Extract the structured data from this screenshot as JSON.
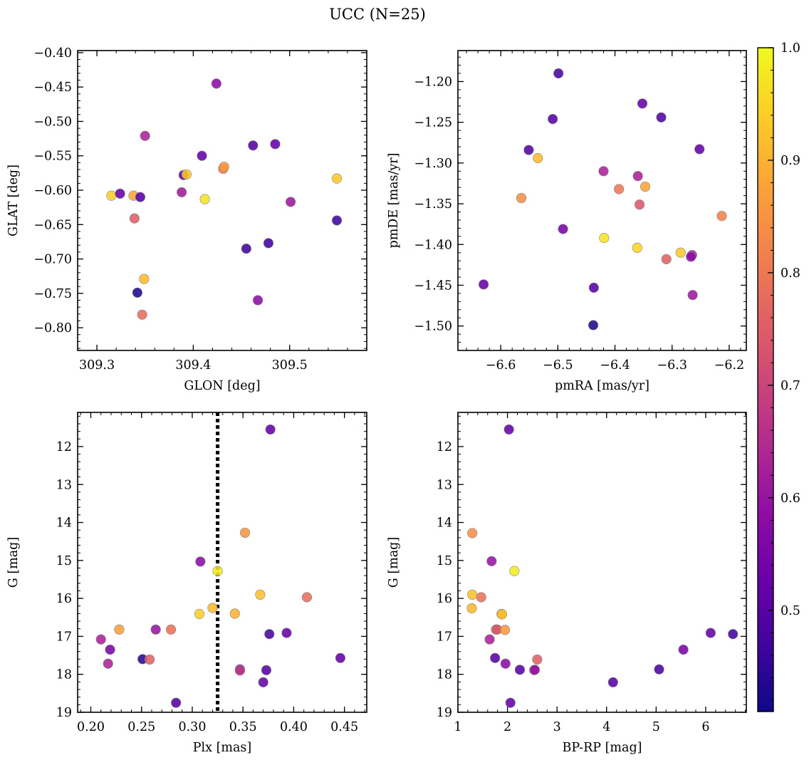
{
  "title": "UCC (N=25)",
  "colorbar": {
    "cmap": "plasma",
    "vmin": 0.41,
    "vmax": 1.0,
    "ticks": [
      0.5,
      0.6,
      0.7,
      0.8,
      0.9,
      1.0
    ],
    "tick_labels": [
      "0.5",
      "0.6",
      "0.7",
      "0.8",
      "0.9",
      "1.0"
    ]
  },
  "chart_data": [
    {
      "type": "scatter",
      "id": "glon-glat",
      "xlabel": "GLON [deg]",
      "ylabel": "GLAT [deg]",
      "xlim": [
        309.28,
        309.58
      ],
      "ylim": [
        -0.833,
        -0.397
      ],
      "y_inverted": false,
      "xticks": [
        309.3,
        309.4,
        309.5
      ],
      "xtick_labels": [
        "309.3",
        "309.4",
        "309.5"
      ],
      "yticks": [
        -0.8,
        -0.75,
        -0.7,
        -0.65,
        -0.6,
        -0.55,
        -0.5,
        -0.45,
        -0.4
      ],
      "ytick_labels": [
        "−0.80",
        "−0.75",
        "−0.70",
        "−0.65",
        "−0.60",
        "−0.55",
        "−0.50",
        "−0.45",
        "−0.40"
      ],
      "x": [
        309.315,
        309.324,
        309.338,
        309.339,
        309.345,
        309.342,
        309.349,
        309.347,
        309.35,
        309.388,
        309.39,
        309.393,
        309.409,
        309.412,
        309.424,
        309.431,
        309.432,
        309.455,
        309.462,
        309.467,
        309.478,
        309.485,
        309.501,
        309.549,
        309.549
      ],
      "y": [
        -0.608,
        -0.605,
        -0.608,
        -0.641,
        -0.61,
        -0.749,
        -0.729,
        -0.781,
        -0.521,
        -0.603,
        -0.578,
        -0.577,
        -0.55,
        -0.613,
        -0.445,
        -0.569,
        -0.566,
        -0.685,
        -0.535,
        -0.76,
        -0.677,
        -0.533,
        -0.617,
        -0.583,
        -0.644
      ],
      "c": [
        0.94,
        0.52,
        0.88,
        0.75,
        0.5,
        0.43,
        0.91,
        0.78,
        0.63,
        0.62,
        0.5,
        0.93,
        0.52,
        0.97,
        0.58,
        0.82,
        0.86,
        0.47,
        0.5,
        0.58,
        0.47,
        0.52,
        0.61,
        0.93,
        0.47
      ]
    },
    {
      "type": "scatter",
      "id": "pm",
      "xlabel": "pmRA [mas/yr]",
      "ylabel": "pmDE [mas/yr]",
      "xlim": [
        -6.675,
        -6.17
      ],
      "ylim": [
        -1.53,
        -1.162
      ],
      "y_inverted": false,
      "xticks": [
        -6.6,
        -6.5,
        -6.4,
        -6.3,
        -6.2
      ],
      "xtick_labels": [
        "−6.6",
        "−6.5",
        "−6.4",
        "−6.3",
        "−6.2"
      ],
      "yticks": [
        -1.5,
        -1.45,
        -1.4,
        -1.35,
        -1.3,
        -1.25,
        -1.2
      ],
      "ytick_labels": [
        "−1.50",
        "−1.45",
        "−1.40",
        "−1.35",
        "−1.30",
        "−1.25",
        "−1.20"
      ],
      "x": [
        -6.499,
        -6.352,
        -6.319,
        -6.509,
        -6.551,
        -6.252,
        -6.535,
        -6.42,
        -6.564,
        -6.36,
        -6.393,
        -6.347,
        -6.357,
        -6.491,
        -6.213,
        -6.419,
        -6.361,
        -6.285,
        -6.31,
        -6.265,
        -6.267,
        -6.63,
        -6.437,
        -6.264,
        -6.438
      ],
      "y": [
        -1.19,
        -1.227,
        -1.244,
        -1.246,
        -1.284,
        -1.283,
        -1.294,
        -1.31,
        -1.343,
        -1.316,
        -1.332,
        -1.329,
        -1.351,
        -1.381,
        -1.365,
        -1.392,
        -1.404,
        -1.41,
        -1.418,
        -1.413,
        -1.415,
        -1.449,
        -1.453,
        -1.462,
        -1.499
      ],
      "c": [
        0.48,
        0.52,
        0.49,
        0.5,
        0.49,
        0.52,
        0.91,
        0.63,
        0.84,
        0.63,
        0.8,
        0.88,
        0.74,
        0.55,
        0.82,
        0.97,
        0.95,
        0.93,
        0.76,
        0.63,
        0.58,
        0.52,
        0.5,
        0.61,
        0.43
      ]
    },
    {
      "type": "scatter",
      "id": "plx-g",
      "xlabel": "Plx [mas]",
      "ylabel": "G [mag]",
      "xlim": [
        0.187,
        0.472
      ],
      "ylim": [
        19.0,
        11.1
      ],
      "y_inverted": true,
      "xticks": [
        0.2,
        0.25,
        0.3,
        0.35,
        0.4,
        0.45
      ],
      "xtick_labels": [
        "0.20",
        "0.25",
        "0.30",
        "0.35",
        "0.40",
        "0.45"
      ],
      "yticks": [
        12,
        13,
        14,
        15,
        16,
        17,
        18,
        19
      ],
      "ytick_labels": [
        "12",
        "13",
        "14",
        "15",
        "16",
        "17",
        "18",
        "19"
      ],
      "vline": 0.325,
      "x": [
        0.377,
        0.352,
        0.308,
        0.325,
        0.367,
        0.413,
        0.32,
        0.307,
        0.342,
        0.376,
        0.393,
        0.228,
        0.264,
        0.279,
        0.21,
        0.219,
        0.217,
        0.251,
        0.258,
        0.446,
        0.347,
        0.373,
        0.347,
        0.37,
        0.284
      ],
      "y": [
        11.55,
        14.27,
        15.03,
        15.28,
        15.9,
        15.97,
        16.25,
        16.41,
        16.4,
        16.94,
        16.91,
        16.82,
        16.82,
        16.82,
        17.08,
        17.35,
        17.72,
        17.6,
        17.61,
        17.57,
        17.87,
        17.89,
        17.9,
        18.21,
        18.75
      ],
      "c": [
        0.52,
        0.85,
        0.58,
        0.98,
        0.92,
        0.78,
        0.91,
        0.94,
        0.9,
        0.48,
        0.52,
        0.87,
        0.6,
        0.79,
        0.63,
        0.55,
        0.63,
        0.44,
        0.76,
        0.52,
        0.52,
        0.5,
        0.68,
        0.52,
        0.5
      ]
    },
    {
      "type": "scatter",
      "id": "bprp-g",
      "xlabel": "BP-RP [mag]",
      "ylabel": "G [mag]",
      "xlim": [
        1.0,
        6.82
      ],
      "ylim": [
        19.0,
        11.1
      ],
      "y_inverted": true,
      "xticks": [
        1,
        2,
        3,
        4,
        5,
        6
      ],
      "xtick_labels": [
        "1",
        "2",
        "3",
        "4",
        "5",
        "6"
      ],
      "yticks": [
        12,
        13,
        14,
        15,
        16,
        17,
        18,
        19
      ],
      "ytick_labels": [
        "12",
        "13",
        "14",
        "15",
        "16",
        "17",
        "18",
        "19"
      ],
      "x": [
        2.03,
        1.29,
        1.68,
        2.14,
        1.29,
        1.47,
        1.28,
        1.88,
        1.89,
        1.77,
        1.79,
        1.95,
        1.64,
        6.1,
        6.55,
        5.55,
        1.75,
        1.96,
        2.6,
        2.25,
        2.54,
        5.06,
        4.13,
        2.06,
        2.55
      ],
      "y": [
        11.55,
        14.28,
        15.02,
        15.28,
        15.9,
        15.97,
        16.26,
        16.41,
        16.42,
        16.82,
        16.82,
        16.83,
        17.08,
        16.91,
        16.94,
        17.35,
        17.57,
        17.72,
        17.61,
        17.88,
        17.89,
        17.87,
        18.21,
        18.75,
        17.88
      ],
      "c": [
        0.52,
        0.84,
        0.6,
        0.98,
        0.92,
        0.79,
        0.91,
        0.95,
        0.91,
        0.76,
        0.74,
        0.86,
        0.63,
        0.52,
        0.47,
        0.55,
        0.5,
        0.58,
        0.76,
        0.5,
        0.65,
        0.48,
        0.5,
        0.52,
        0.6
      ]
    }
  ]
}
